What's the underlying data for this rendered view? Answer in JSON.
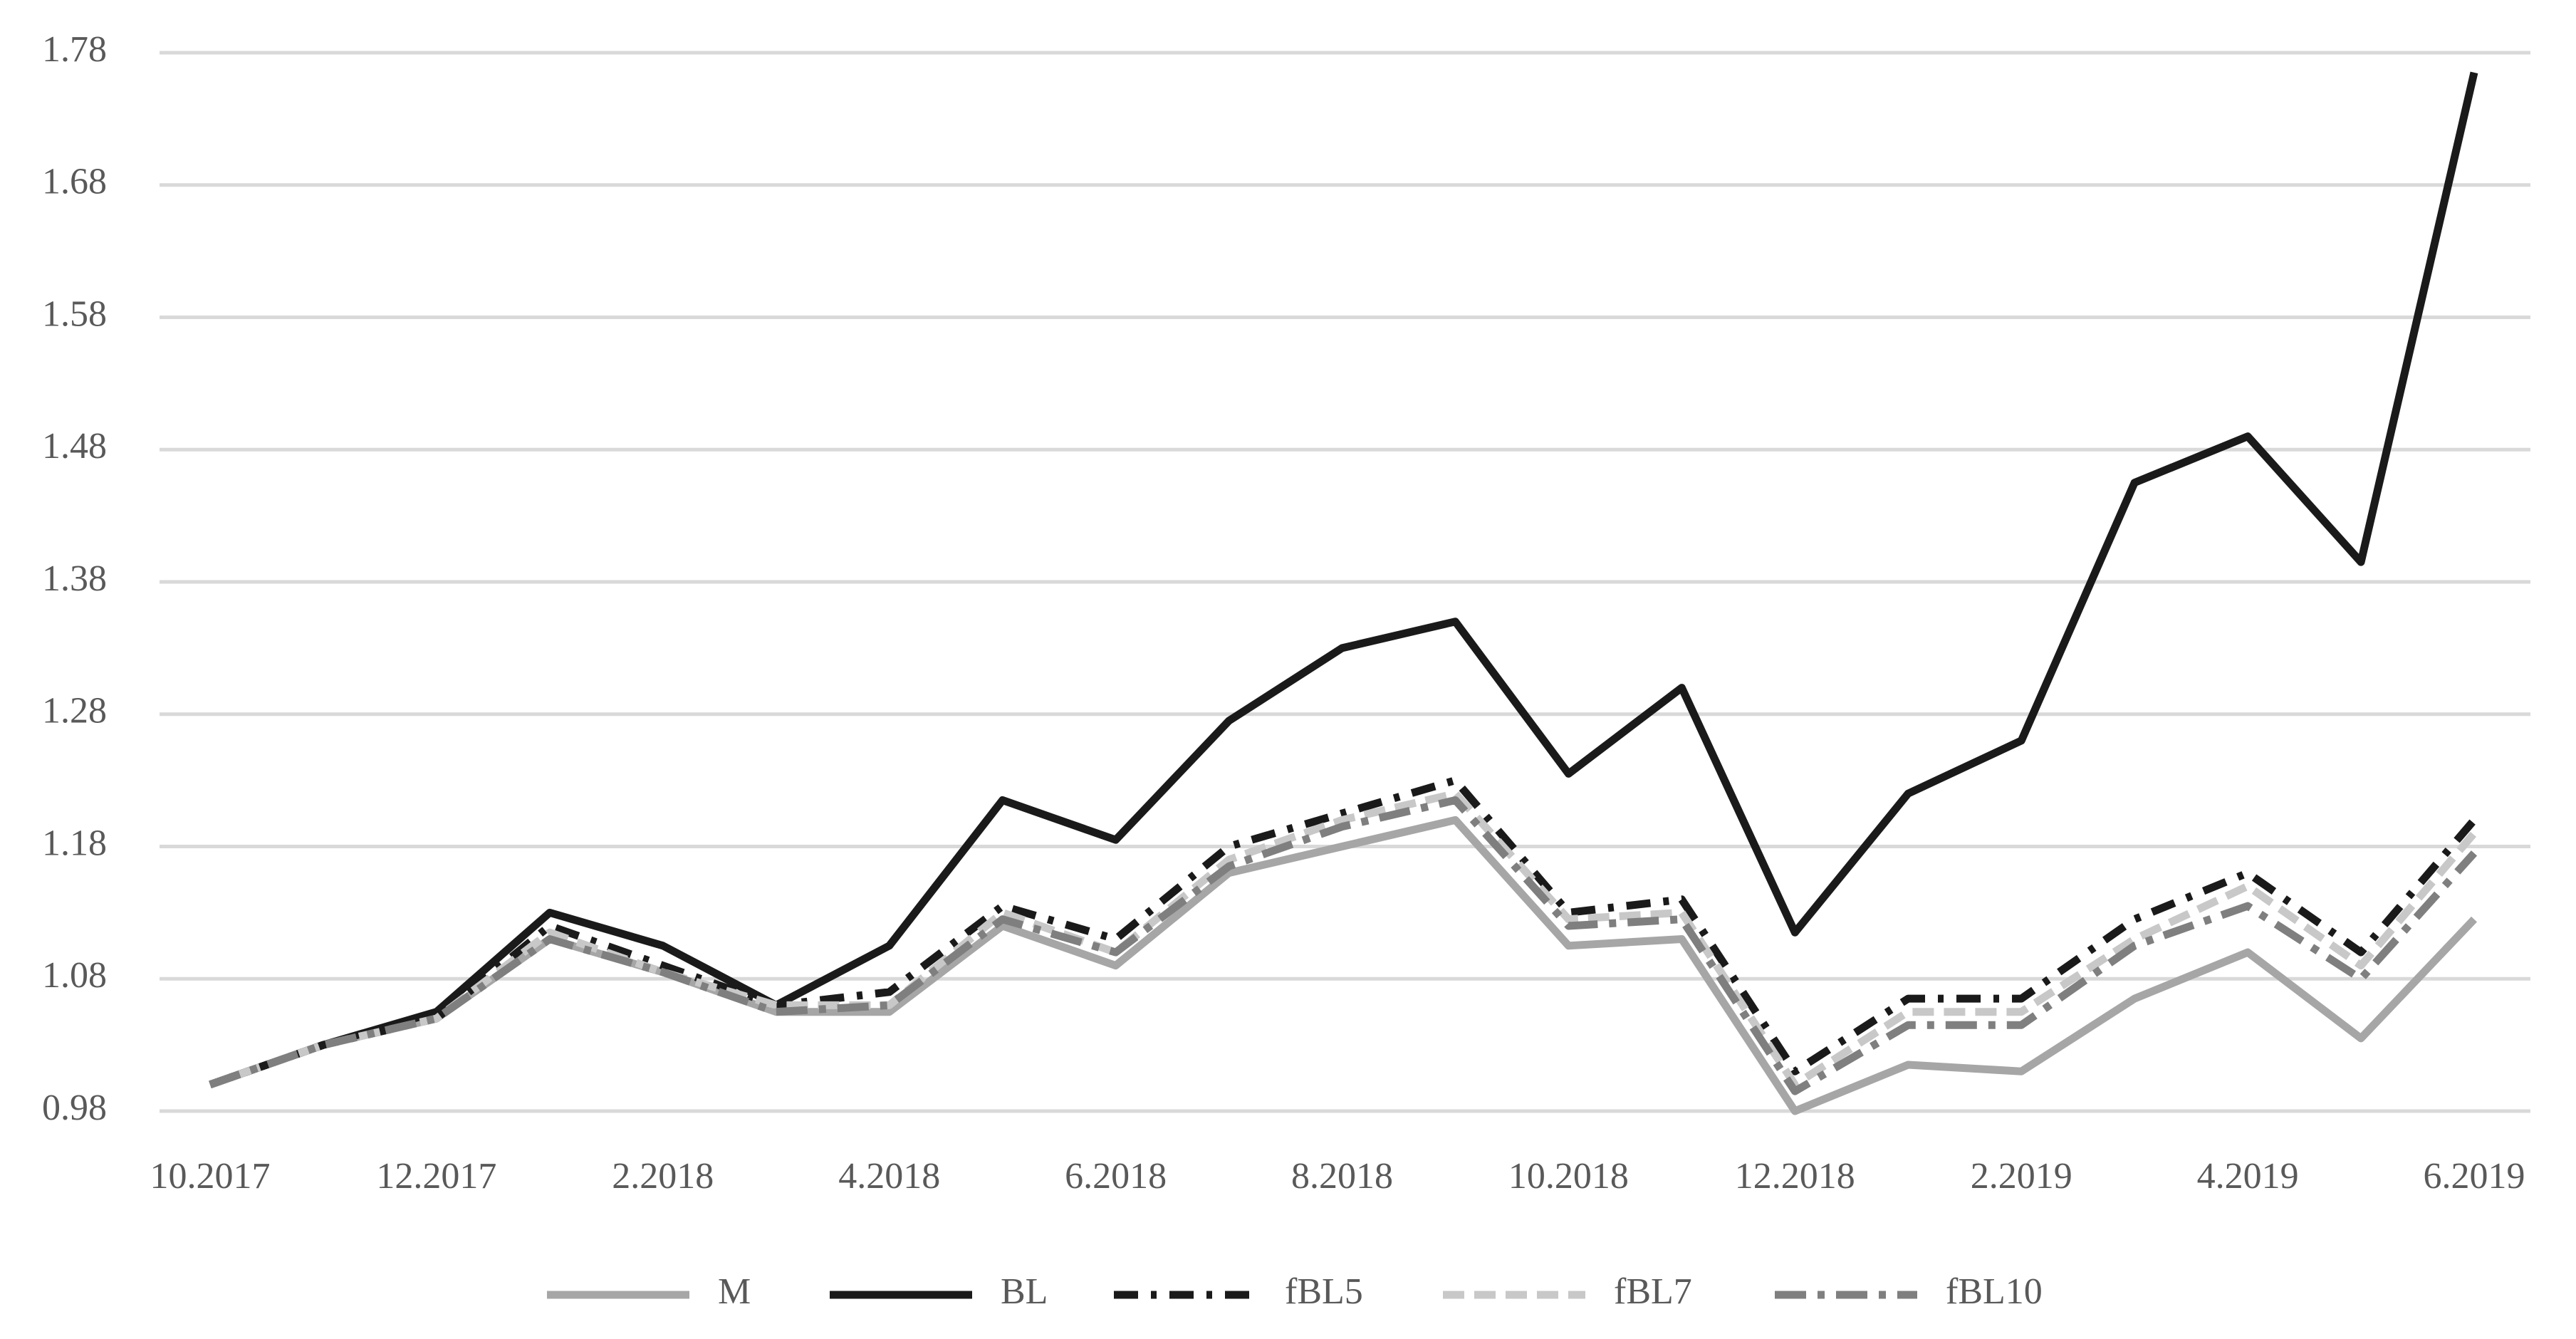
{
  "chart_data": {
    "type": "line",
    "categories": [
      "10.2017",
      null,
      "12.2017",
      null,
      "2.2018",
      null,
      "4.2018",
      null,
      "6.2018",
      null,
      "8.2018",
      null,
      "10.2018",
      null,
      "12.2018",
      null,
      "2.2019",
      null,
      "4.2019",
      null,
      "6.2019"
    ],
    "ylim": [
      0.98,
      1.78
    ],
    "yticks": [
      0.98,
      1.08,
      1.18,
      1.28,
      1.38,
      1.48,
      1.58,
      1.68,
      1.78
    ],
    "grid": true,
    "legend": "bottom",
    "series": [
      {
        "name": "M",
        "color": "#a6a6a6",
        "dash": "solid",
        "values": [
          1.0,
          1.03,
          1.05,
          1.11,
          1.085,
          1.055,
          1.055,
          1.12,
          1.09,
          1.16,
          1.18,
          1.2,
          1.105,
          1.11,
          0.98,
          1.015,
          1.01,
          1.065,
          1.1,
          1.035,
          1.125
        ]
      },
      {
        "name": "BL",
        "color": "#1a1a1a",
        "dash": "solid",
        "values": [
          1.0,
          1.03,
          1.055,
          1.13,
          1.105,
          1.06,
          1.105,
          1.215,
          1.185,
          1.275,
          1.33,
          1.35,
          1.235,
          1.3,
          1.115,
          1.22,
          1.26,
          1.455,
          1.49,
          1.395,
          1.765
        ]
      },
      {
        "name": "fBL5",
        "color": "#1a1a1a",
        "dash": "dashdot",
        "values": [
          1.0,
          1.03,
          1.05,
          1.12,
          1.09,
          1.06,
          1.07,
          1.135,
          1.11,
          1.18,
          1.205,
          1.23,
          1.13,
          1.14,
          1.01,
          1.065,
          1.065,
          1.125,
          1.16,
          1.1,
          1.2
        ]
      },
      {
        "name": "fBL7",
        "color": "#c8c8c8",
        "dash": "dash",
        "values": [
          1.0,
          1.03,
          1.05,
          1.115,
          1.085,
          1.06,
          1.06,
          1.13,
          1.1,
          1.17,
          1.2,
          1.22,
          1.125,
          1.13,
          1.0,
          1.055,
          1.055,
          1.11,
          1.15,
          1.09,
          1.19
        ]
      },
      {
        "name": "fBL10",
        "color": "#7f7f7f",
        "dash": "longdashdot",
        "values": [
          1.0,
          1.03,
          1.05,
          1.11,
          1.085,
          1.055,
          1.06,
          1.125,
          1.1,
          1.165,
          1.195,
          1.215,
          1.12,
          1.125,
          0.995,
          1.045,
          1.045,
          1.105,
          1.135,
          1.08,
          1.175
        ]
      }
    ]
  }
}
